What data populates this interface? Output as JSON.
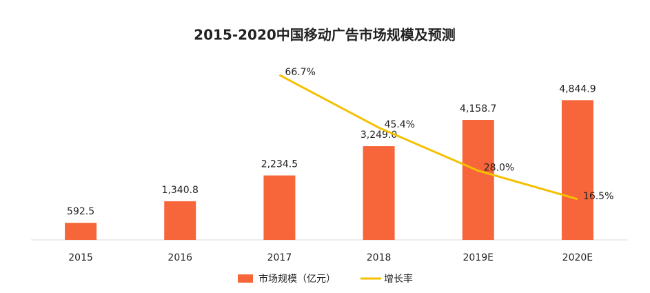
{
  "chart_data": {
    "type": "bar",
    "title": "2015-2020中国移动广告市场规模及预测",
    "categories": [
      "2015",
      "2016",
      "2017",
      "2018",
      "2019E",
      "2020E"
    ],
    "series": [
      {
        "name": "市场规模（亿元）",
        "type": "bar",
        "color": "#f7653a",
        "values": [
          592.5,
          1340.8,
          2234.5,
          3249.0,
          4158.7,
          4844.9
        ],
        "value_labels": [
          "592.5",
          "1,340.8",
          "2,234.5",
          "3,249.0",
          "4,158.7",
          "4,844.9"
        ]
      },
      {
        "name": "增长率",
        "type": "line",
        "axis": "y2",
        "color": "#f5c000",
        "values": [
          null,
          null,
          66.7,
          45.4,
          28.0,
          16.5
        ],
        "value_labels": [
          null,
          null,
          "66.7%",
          "45.4%",
          "28.0%",
          "16.5%"
        ]
      }
    ],
    "ylim": [
      0,
      6000
    ],
    "y2lim": [
      0,
      70
    ]
  }
}
